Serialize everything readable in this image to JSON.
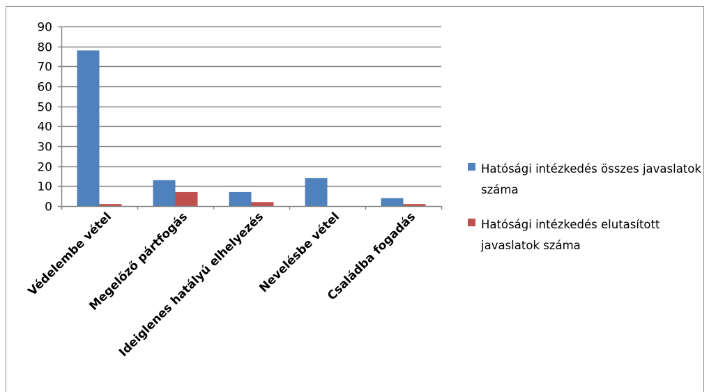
{
  "chart_data": {
    "type": "bar",
    "categories": [
      "Védelembe vétel",
      "Megelőző pártfogás",
      "Ideiglenes hatályú elhelyezés",
      "Nevelésbe vétel",
      "Családba fogadás"
    ],
    "series": [
      {
        "name": "Hatósági intézkedés összes javaslatok száma",
        "values": [
          78,
          13,
          7,
          14,
          4
        ],
        "color": "#4F81BD"
      },
      {
        "name": "Hatósági intézkedés elutasított javaslatok száma",
        "values": [
          1,
          7,
          2,
          0,
          1
        ],
        "color": "#C0504D"
      }
    ],
    "y_ticks": [
      "0",
      "10",
      "20",
      "30",
      "40",
      "50",
      "60",
      "70",
      "80",
      "90"
    ],
    "ylim": [
      0,
      90
    ],
    "grid": true,
    "legend_position": "right",
    "title": "",
    "xlabel": "",
    "ylabel": ""
  }
}
